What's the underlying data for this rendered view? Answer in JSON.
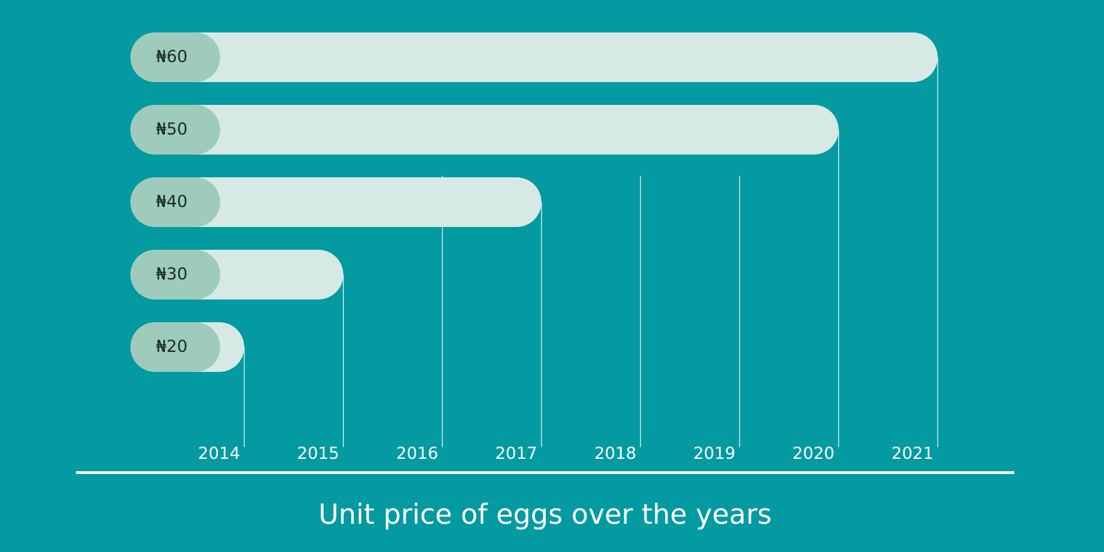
{
  "chart_data": {
    "type": "bar",
    "title": "Unit price of eggs over the years",
    "x": [
      2014,
      2015,
      2016,
      2017,
      2018,
      2019,
      2020,
      2021
    ],
    "values": [
      20,
      30,
      null,
      40,
      null,
      null,
      50,
      60
    ],
    "value_labels": [
      "₦20",
      "₦30",
      null,
      "₦40",
      null,
      null,
      "₦50",
      "₦60"
    ],
    "xlim": [
      2014,
      2021
    ],
    "color": "#d6e9e4",
    "accent_color": "#9ecbbb",
    "background": "#039aa1"
  }
}
